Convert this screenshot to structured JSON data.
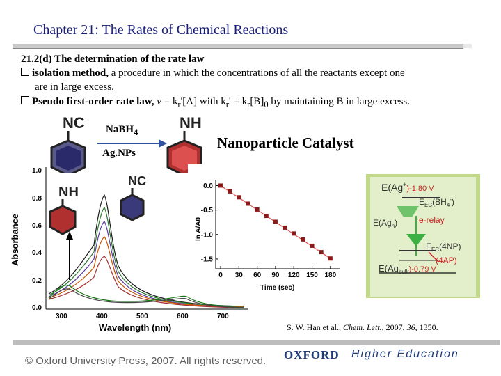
{
  "slide": {
    "title": "Chapter 21: The Rates of Chemical Reactions",
    "section_heading": "21.2(d) The determination of the rate law",
    "bullets": [
      {
        "term": "isolation method,",
        "text": " a procedure in which the concentrations of all the reactants except one"
      },
      {
        "continuation": "are in large excess."
      },
      {
        "term": "Pseudo first-order rate law,",
        "eq_v": " v",
        "eq_rest": " = k",
        "eq_sub": "r",
        "eq_tail": "'[A] with k",
        "eq_sub2": "r",
        "eq_tail2": "' = k",
        "eq_sub3": "r",
        "eq_tail3": "[B]",
        "eq_sub4": "0",
        "eq_end": " by maintaining B in large excess."
      }
    ]
  },
  "scheme": {
    "reagent_top": "NaBH",
    "reagent_top_sub": "4",
    "reagent_bottom": "Ag.NPs",
    "heading": "Nanoparticle Catalyst",
    "reactant_label": "NC",
    "product_label": "NH"
  },
  "inset_labels": {
    "reactant_label": "NC",
    "product_label": "NH"
  },
  "uv_chart": {
    "type": "line",
    "xlabel": "Wavelength (nm)",
    "ylabel": "Absorbance",
    "x_ticks": [
      "300",
      "400",
      "500",
      "600",
      "700"
    ],
    "y_ticks": [
      "0.0",
      "0.2",
      "0.4",
      "0.6",
      "0.8",
      "1.0"
    ]
  },
  "chart_data": {
    "type": "scatter",
    "x": [
      0,
      15,
      30,
      45,
      60,
      75,
      90,
      105,
      120,
      135,
      150,
      165,
      180
    ],
    "y": [
      0.0,
      -0.12,
      -0.24,
      -0.37,
      -0.49,
      -0.62,
      -0.74,
      -0.86,
      -0.98,
      -1.1,
      -1.23,
      -1.36,
      -1.49
    ],
    "xlabel": "Time (sec)",
    "ylabel": "ln A/A0",
    "x_ticks": [
      "0",
      "30",
      "60",
      "90",
      "120",
      "150",
      "180"
    ],
    "y_ticks": [
      "0.0",
      "-0.5",
      "-1.0",
      "-1.5"
    ],
    "xlim": [
      -8,
      195
    ],
    "ylim": [
      -1.7,
      0.12
    ],
    "marker_color": "#8b1a1a",
    "line_color": "#e05050"
  },
  "energy_diagram": {
    "e_ag_plus": "E(Ag",
    "e_ag_plus_sup": "+",
    "e_ag_plus_val": ")-1.80 V",
    "e_bh4": "E",
    "e_bh4_sub": "EC",
    "e_bh4_tail": "(BH",
    "e_bh4_sub2": "4",
    "e_bh4_sup": "-",
    "e_bh4_close": ")",
    "e_agn": "E(Ag",
    "e_agn_sub": "n",
    "e_agn_close": ")",
    "relay": "e-relay",
    "e_4np": "E",
    "e_4np_sub": "EC",
    "e_4np_tail": "(4NP)",
    "e_4ap": "(4AP)",
    "e_bulk": "E(Ag",
    "e_bulk_sub": "bulk",
    "e_bulk_val": ")-0.79 V",
    "colors": {
      "panel": "#c2d98a",
      "arrow": "#3cb043",
      "relay": "#cc2222",
      "text": "#333333"
    }
  },
  "reference": {
    "authors": "S. W. Han et al., ",
    "journal": "Chem. Lett.",
    "year": ", 2007, ",
    "volume": "36",
    "pages": ", 1350."
  },
  "footer": {
    "copyright": "© Oxford University Press, 2007. All rights reserved.",
    "publisher": "OXFORD",
    "tagline": "Higher Education"
  }
}
